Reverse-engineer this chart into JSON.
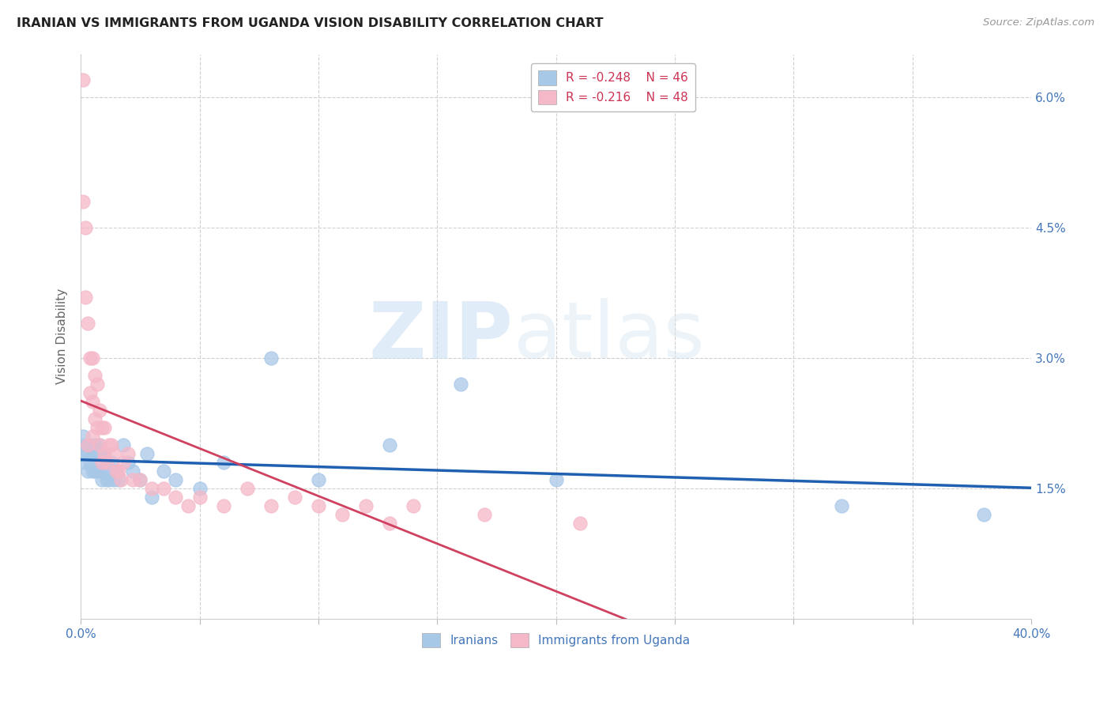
{
  "title": "IRANIAN VS IMMIGRANTS FROM UGANDA VISION DISABILITY CORRELATION CHART",
  "source": "Source: ZipAtlas.com",
  "ylabel": "Vision Disability",
  "watermark_zip": "ZIP",
  "watermark_atlas": "atlas",
  "xlim": [
    0.0,
    0.4
  ],
  "ylim": [
    0.0,
    0.065
  ],
  "xtick_vals": [
    0.0,
    0.05,
    0.1,
    0.15,
    0.2,
    0.25,
    0.3,
    0.35,
    0.4
  ],
  "xtick_labels": [
    "0.0%",
    "",
    "",
    "",
    "",
    "",
    "",
    "",
    "40.0%"
  ],
  "ytick_vals": [
    0.0,
    0.015,
    0.03,
    0.045,
    0.06
  ],
  "ytick_labels_right": [
    "",
    "1.5%",
    "3.0%",
    "4.5%",
    "6.0%"
  ],
  "legend_blue_r": "-0.248",
  "legend_blue_n": "46",
  "legend_pink_r": "-0.216",
  "legend_pink_n": "48",
  "blue_color": "#a8c8e8",
  "pink_color": "#f5b8c8",
  "trendline_blue_color": "#2060b0",
  "trendline_pink_solid_color": "#d04060",
  "trendline_pink_dash_color": "#e080a0",
  "grid_color": "#d0d0d0",
  "bg_color": "#ffffff",
  "blue_label": "Iranians",
  "pink_label": "Immigrants from Uganda",
  "iranians_x": [
    0.001,
    0.001,
    0.002,
    0.002,
    0.003,
    0.003,
    0.004,
    0.004,
    0.005,
    0.005,
    0.006,
    0.006,
    0.006,
    0.007,
    0.007,
    0.008,
    0.008,
    0.009,
    0.009,
    0.01,
    0.01,
    0.011,
    0.011,
    0.012,
    0.012,
    0.013,
    0.014,
    0.015,
    0.016,
    0.018,
    0.02,
    0.022,
    0.025,
    0.028,
    0.03,
    0.035,
    0.04,
    0.05,
    0.06,
    0.08,
    0.1,
    0.13,
    0.16,
    0.2,
    0.32,
    0.38
  ],
  "iranians_y": [
    0.021,
    0.019,
    0.02,
    0.018,
    0.019,
    0.017,
    0.02,
    0.018,
    0.019,
    0.017,
    0.02,
    0.019,
    0.017,
    0.019,
    0.017,
    0.02,
    0.018,
    0.019,
    0.016,
    0.019,
    0.017,
    0.018,
    0.016,
    0.017,
    0.016,
    0.018,
    0.016,
    0.017,
    0.016,
    0.02,
    0.018,
    0.017,
    0.016,
    0.019,
    0.014,
    0.017,
    0.016,
    0.015,
    0.018,
    0.03,
    0.016,
    0.02,
    0.027,
    0.016,
    0.013,
    0.012
  ],
  "uganda_x": [
    0.001,
    0.001,
    0.002,
    0.002,
    0.003,
    0.003,
    0.004,
    0.004,
    0.005,
    0.005,
    0.005,
    0.006,
    0.006,
    0.007,
    0.007,
    0.008,
    0.008,
    0.009,
    0.009,
    0.01,
    0.01,
    0.011,
    0.012,
    0.013,
    0.014,
    0.015,
    0.016,
    0.017,
    0.018,
    0.02,
    0.022,
    0.025,
    0.03,
    0.035,
    0.04,
    0.045,
    0.05,
    0.06,
    0.07,
    0.08,
    0.09,
    0.1,
    0.11,
    0.12,
    0.13,
    0.14,
    0.17,
    0.21
  ],
  "uganda_y": [
    0.062,
    0.048,
    0.045,
    0.037,
    0.034,
    0.02,
    0.03,
    0.026,
    0.03,
    0.025,
    0.021,
    0.028,
    0.023,
    0.027,
    0.022,
    0.024,
    0.02,
    0.022,
    0.018,
    0.022,
    0.019,
    0.018,
    0.02,
    0.02,
    0.019,
    0.017,
    0.017,
    0.016,
    0.018,
    0.019,
    0.016,
    0.016,
    0.015,
    0.015,
    0.014,
    0.013,
    0.014,
    0.013,
    0.015,
    0.013,
    0.014,
    0.013,
    0.012,
    0.013,
    0.011,
    0.013,
    0.012,
    0.011
  ]
}
